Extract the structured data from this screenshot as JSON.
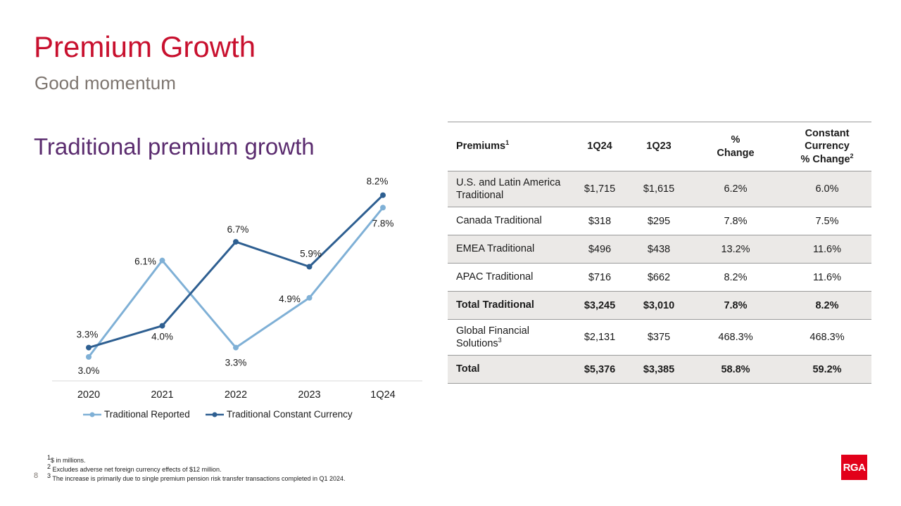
{
  "header": {
    "title": "Premium Growth",
    "subtitle": "Good momentum"
  },
  "section_title": "Traditional premium growth",
  "chart_data": {
    "type": "line",
    "title": "Traditional premium growth",
    "categories": [
      "2020",
      "2021",
      "2022",
      "2023",
      "1Q24"
    ],
    "series": [
      {
        "name": "Traditional Reported",
        "values": [
          3.0,
          6.1,
          3.3,
          4.9,
          7.8
        ],
        "labels": [
          "3.0%",
          "6.1%",
          "3.3%",
          "4.9%",
          "7.8%"
        ],
        "color": "#7fb0d6"
      },
      {
        "name": "Traditional Constant Currency",
        "values": [
          3.3,
          4.0,
          6.7,
          5.9,
          8.2
        ],
        "labels": [
          "3.3%",
          "4.0%",
          "6.7%",
          "5.9%",
          "8.2%"
        ],
        "color": "#2e5f91"
      }
    ],
    "ylim": [
      0,
      9
    ],
    "xlabel": "",
    "ylabel": "",
    "legend": "bottom",
    "grid": false
  },
  "table": {
    "headers": [
      "Premiums",
      "1Q24",
      "1Q23",
      "%\nChange",
      "Constant\nCurrency\n% Change"
    ],
    "header_sup": {
      "0": "1",
      "4": "2"
    },
    "rows": [
      {
        "cells": [
          "U.S. and Latin America Traditional",
          "$1,715",
          "$1,615",
          "6.2%",
          "6.0%"
        ],
        "shaded": true,
        "bold": false,
        "tall": true
      },
      {
        "cells": [
          "Canada Traditional",
          "$318",
          "$295",
          "7.8%",
          "7.5%"
        ],
        "shaded": false,
        "bold": false,
        "tall": false
      },
      {
        "cells": [
          "EMEA Traditional",
          "$496",
          "$438",
          "13.2%",
          "11.6%"
        ],
        "shaded": true,
        "bold": false,
        "tall": false
      },
      {
        "cells": [
          "APAC Traditional",
          "$716",
          "$662",
          "8.2%",
          "11.6%"
        ],
        "shaded": false,
        "bold": false,
        "tall": false
      },
      {
        "cells": [
          "Total Traditional",
          "$3,245",
          "$3,010",
          "7.8%",
          "8.2%"
        ],
        "shaded": true,
        "bold": true,
        "tall": false
      },
      {
        "cells": [
          "Global Financial Solutions",
          "$2,131",
          "$375",
          "468.3%",
          "468.3%"
        ],
        "shaded": false,
        "bold": false,
        "tall": true,
        "sup": "3"
      },
      {
        "cells": [
          "Total",
          "$5,376",
          "$3,385",
          "58.8%",
          "59.2%"
        ],
        "shaded": true,
        "bold": true,
        "tall": false
      }
    ]
  },
  "footnotes": [
    {
      "num": "1",
      "text": "$ in millions."
    },
    {
      "num": "2",
      "text": "Excludes adverse net foreign currency effects of $12 million."
    },
    {
      "num": "3",
      "text": "The increase is primarily due to single premium pension risk transfer transactions completed in Q1 2024."
    }
  ],
  "page_number": "8",
  "logo_text": "RGA"
}
